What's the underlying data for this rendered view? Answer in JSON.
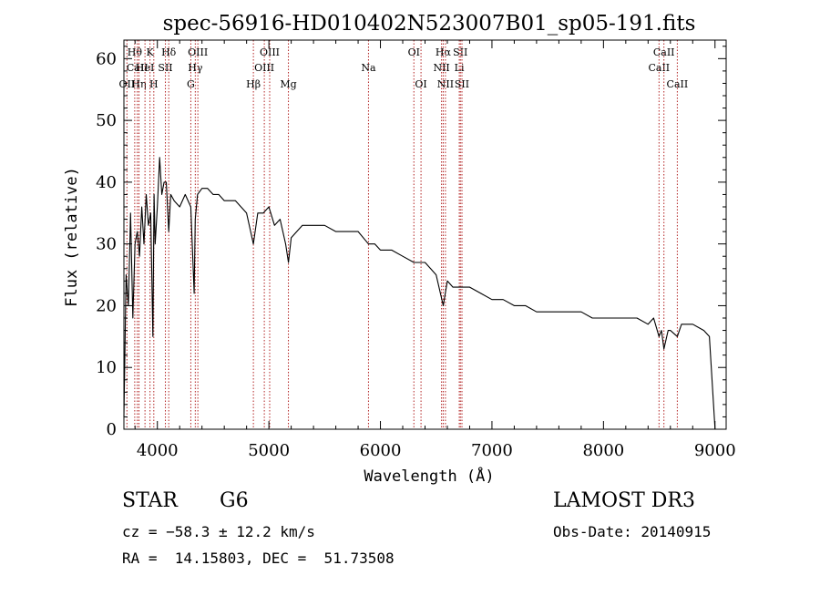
{
  "colors": {
    "spectrum": "#000000",
    "line_markers": "#b22222",
    "axes": "#000000",
    "background": "#ffffff"
  },
  "chart_data": {
    "type": "line",
    "title": "spec-56916-HD010402N523007B01_sp05-191.fits",
    "xlabel": "Wavelength (Å)",
    "ylabel": "Flux (relative)",
    "xlim": [
      3700,
      9100
    ],
    "ylim": [
      0,
      63
    ],
    "x_ticks": [
      4000,
      5000,
      6000,
      7000,
      8000,
      9000
    ],
    "y_ticks": [
      0,
      10,
      20,
      30,
      40,
      50,
      60
    ],
    "series": [
      {
        "name": "spectrum",
        "x": [
          3700,
          3720,
          3740,
          3760,
          3780,
          3800,
          3820,
          3840,
          3860,
          3880,
          3900,
          3920,
          3940,
          3960,
          3970,
          3980,
          4000,
          4020,
          4040,
          4060,
          4080,
          4102,
          4120,
          4150,
          4200,
          4250,
          4300,
          4330,
          4340,
          4360,
          4400,
          4450,
          4500,
          4550,
          4600,
          4650,
          4700,
          4750,
          4800,
          4861,
          4900,
          4950,
          5000,
          5050,
          5100,
          5150,
          5175,
          5200,
          5250,
          5300,
          5400,
          5500,
          5600,
          5700,
          5800,
          5893,
          5950,
          6000,
          6100,
          6200,
          6300,
          6400,
          6450,
          6500,
          6563,
          6600,
          6650,
          6700,
          6750,
          6800,
          6900,
          7000,
          7100,
          7200,
          7300,
          7400,
          7500,
          7600,
          7700,
          7800,
          7900,
          8000,
          8100,
          8200,
          8300,
          8400,
          8450,
          8498,
          8520,
          8542,
          8580,
          8600,
          8662,
          8700,
          8800,
          8900,
          8950,
          9000
        ],
        "values": [
          2,
          25,
          20,
          35,
          18,
          30,
          32,
          28,
          36,
          30,
          38,
          33,
          35,
          15,
          38,
          30,
          36,
          44,
          38,
          40,
          40,
          32,
          38,
          37,
          36,
          38,
          36,
          22,
          34,
          38,
          39,
          39,
          38,
          38,
          37,
          37,
          37,
          36,
          35,
          30,
          35,
          35,
          36,
          33,
          34,
          30,
          27,
          31,
          32,
          33,
          33,
          33,
          32,
          32,
          32,
          30,
          30,
          29,
          29,
          28,
          27,
          27,
          26,
          25,
          20,
          24,
          23,
          23,
          23,
          23,
          22,
          21,
          21,
          20,
          20,
          19,
          19,
          19,
          19,
          19,
          18,
          18,
          18,
          18,
          18,
          17,
          18,
          15,
          16,
          13,
          16,
          16,
          15,
          17,
          17,
          16,
          15,
          0
        ]
      }
    ],
    "line_markers": [
      {
        "label": "OII",
        "x": 3727,
        "row": 3
      },
      {
        "label": "Hθ",
        "x": 3797,
        "row": 1
      },
      {
        "label": "CaII",
        "x": 3820,
        "row": 2
      },
      {
        "label": "Hη",
        "x": 3835,
        "row": 3
      },
      {
        "label": "HeI",
        "x": 3889,
        "row": 2
      },
      {
        "label": "K",
        "x": 3934,
        "row": 1
      },
      {
        "label": "H",
        "x": 3968,
        "row": 3
      },
      {
        "label": "SII",
        "x": 4072,
        "row": 2
      },
      {
        "label": "Hδ",
        "x": 4102,
        "row": 1
      },
      {
        "label": "G",
        "x": 4300,
        "row": 3
      },
      {
        "label": "Hγ",
        "x": 4340,
        "row": 2
      },
      {
        "label": "OIII",
        "x": 4363,
        "row": 1
      },
      {
        "label": "Hβ",
        "x": 4861,
        "row": 3
      },
      {
        "label": "OIII",
        "x": 4959,
        "row": 2
      },
      {
        "label": "OIII",
        "x": 5007,
        "row": 1
      },
      {
        "label": "Mg",
        "x": 5175,
        "row": 3
      },
      {
        "label": "Na",
        "x": 5893,
        "row": 2
      },
      {
        "label": "OI",
        "x": 6300,
        "row": 1
      },
      {
        "label": "OI",
        "x": 6364,
        "row": 3
      },
      {
        "label": "NII",
        "x": 6548,
        "row": 2
      },
      {
        "label": "Hα",
        "x": 6563,
        "row": 1
      },
      {
        "label": "NII",
        "x": 6583,
        "row": 3
      },
      {
        "label": "Li",
        "x": 6707,
        "row": 2
      },
      {
        "label": "SII",
        "x": 6717,
        "row": 1
      },
      {
        "label": "SII",
        "x": 6731,
        "row": 3
      },
      {
        "label": "CaII",
        "x": 8498,
        "row": 2
      },
      {
        "label": "CaII",
        "x": 8542,
        "row": 1
      },
      {
        "label": "CaII",
        "x": 8662,
        "row": 3
      }
    ]
  },
  "info": {
    "object_class": "STAR",
    "subclass": "G6",
    "survey": "LAMOST DR3",
    "velocity": "cz = −58.3 ± 12.2 km/s",
    "obs_date": "Obs-Date: 20140915",
    "coords": "RA =  14.15803, DEC =  51.73508"
  }
}
